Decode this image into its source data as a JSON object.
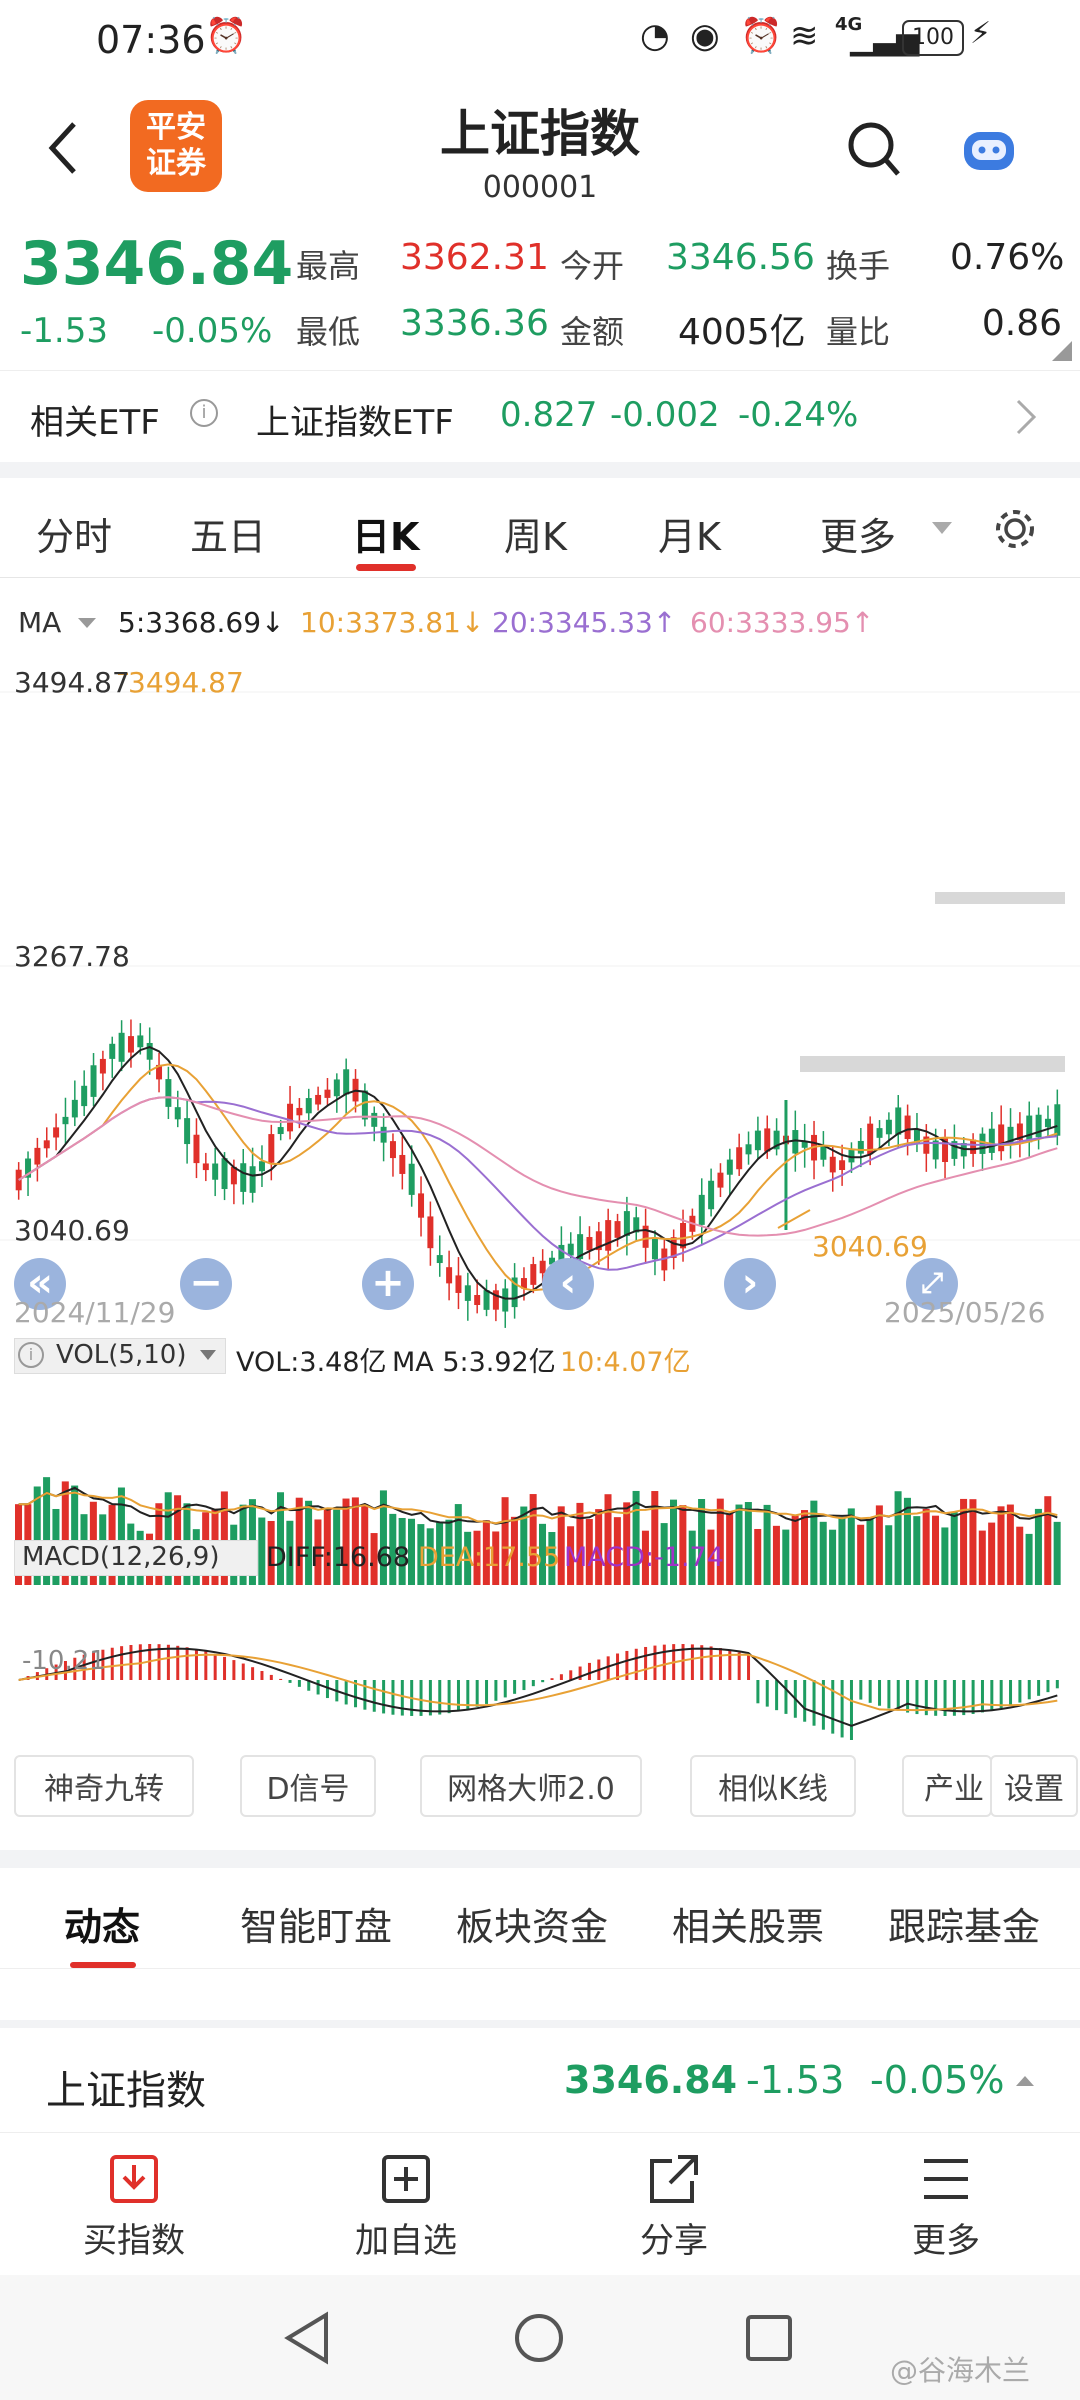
{
  "status_bar": {
    "time": "07:36",
    "net": "4G",
    "battery": "100"
  },
  "header": {
    "logo_line1": "平安",
    "logo_line2": "证券",
    "title": "上证指数",
    "code": "000001"
  },
  "quote": {
    "price": "3346.84",
    "change": "-1.53",
    "change_pct": "-0.05%",
    "high_label": "最高",
    "high": "3362.31",
    "open_label": "今开",
    "open": "3346.56",
    "turnover_label": "换手",
    "turnover": "0.76%",
    "low_label": "最低",
    "low": "3336.36",
    "amount_label": "金额",
    "amount": "4005亿",
    "ratio_label": "量比",
    "ratio": "0.86"
  },
  "etf": {
    "label": "相关ETF",
    "name": "上证指数ETF",
    "price": "0.827",
    "change": "-0.002",
    "change_pct": "-0.24%"
  },
  "ktabs": {
    "items": [
      "分时",
      "五日",
      "日K",
      "周K",
      "月K",
      "更多"
    ],
    "active": "日K"
  },
  "chart": {
    "ma_label": "MA",
    "ma5": "5:3368.69↓",
    "ma10": "10:3373.81↓",
    "ma20": "20:3345.33↑",
    "ma60": "60:3333.95↑",
    "price_top": "3494.87",
    "price_high_mark": "3494.87",
    "price_mid": "3267.78",
    "price_bottom": "3040.69",
    "price_low_mark": "3040.69",
    "date_start": "2024/11/29",
    "date_end": "2025/05/26",
    "vol_label": "VOL(5,10)",
    "vol_value": "VOL:3.48亿",
    "vol_ma5": "MA 5:3.92亿",
    "vol_ma10": "10:4.07亿",
    "macd_label": "MACD(12,26,9)",
    "diff": "DIFF:16.68",
    "dea": "DEA:17.55",
    "macd": "MACD:-1.74",
    "macd_axis": "-10.21",
    "colors": {
      "up": "#e0302a",
      "down": "#1e9d61",
      "ma5": "#222222",
      "ma10": "#e8a135",
      "ma20": "#9a6fd1",
      "ma60": "#e48fb0"
    }
  },
  "tools": [
    "神奇九转",
    "D信号",
    "网格大师2.0",
    "相似K线",
    "产业",
    "设置"
  ],
  "dtabs": {
    "items": [
      "动态",
      "智能盯盘",
      "板块资金",
      "相关股票",
      "跟踪基金"
    ],
    "active": "动态"
  },
  "index_row": {
    "name": "上证指数",
    "price": "3346.84",
    "change": "-1.53",
    "change_pct": "-0.05%"
  },
  "actions": {
    "buy": "买指数",
    "add": "加自选",
    "share": "分享",
    "more": "更多"
  },
  "watermark": "@谷海木兰"
}
